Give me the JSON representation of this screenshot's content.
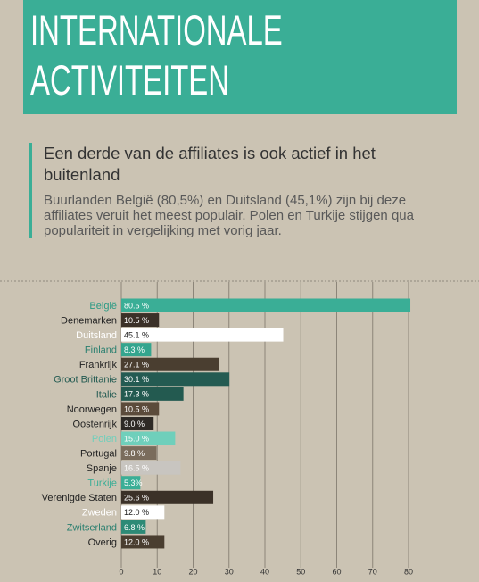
{
  "header": {
    "title": "INTERNATIONALE ACTIVITEITEN",
    "heading": "Een derde van de affiliates is ook actief in het buitenland",
    "text": "Buurlanden België (80,5%) en Duitsland (45,1%) zijn bij deze affiliates veruit het meest populair. Polen en Turkije stijgen qua populariteit in vergelijking met vorig jaar."
  },
  "chart_data": {
    "type": "bar",
    "orientation": "horizontal",
    "categories": [
      "België",
      "Denemarken",
      "Duitsland",
      "Finland",
      "Frankrijk",
      "Groot Brittanie",
      "Italie",
      "Noorwegen",
      "Oostenrijk",
      "Polen",
      "Portugal",
      "Spanje",
      "Turkije",
      "Verenigde Staten",
      "Zweden",
      "Zwitserland",
      "Overig"
    ],
    "values": [
      80.5,
      10.5,
      45.1,
      8.3,
      27.1,
      30.1,
      17.3,
      10.5,
      9.0,
      15.0,
      9.8,
      16.5,
      5.3,
      25.6,
      12.0,
      6.8,
      12.0
    ],
    "value_labels": [
      "80.5 %",
      "10.5 %",
      "45.1 %",
      "8.3 %",
      "27.1 %",
      "30.1 %",
      "17.3 %",
      "10.5 %",
      "9.0 %",
      "15.0 %",
      "9.8 %",
      "16.5 %",
      "5.3%",
      "25.6 %",
      "12.0 %",
      "6.8 %",
      "12.0 %"
    ],
    "colors": [
      "#3aae96",
      "#3b3128",
      "#ffffff",
      "#34a58e",
      "#4a3e30",
      "#245b52",
      "#235a50",
      "#5b4b3b",
      "#2e2a26",
      "#6fcfbb",
      "#7a6c5c",
      "#c8c5c0",
      "#3aae96",
      "#3b3128",
      "#ffffff",
      "#2d8a76",
      "#4a3e30"
    ],
    "label_colors": [
      "#2a9a84",
      "#222222",
      "#ffffff",
      "#2a7f6f",
      "#222222",
      "#245b52",
      "#245b52",
      "#222222",
      "#222222",
      "#6fcfbb",
      "#222222",
      "#222222",
      "#3aae96",
      "#222222",
      "#ffffff",
      "#2a7f6f",
      "#222222"
    ],
    "xlim": [
      0,
      80
    ],
    "xticks": [
      0,
      10,
      20,
      30,
      40,
      50,
      60,
      70,
      80
    ],
    "grid": true
  }
}
